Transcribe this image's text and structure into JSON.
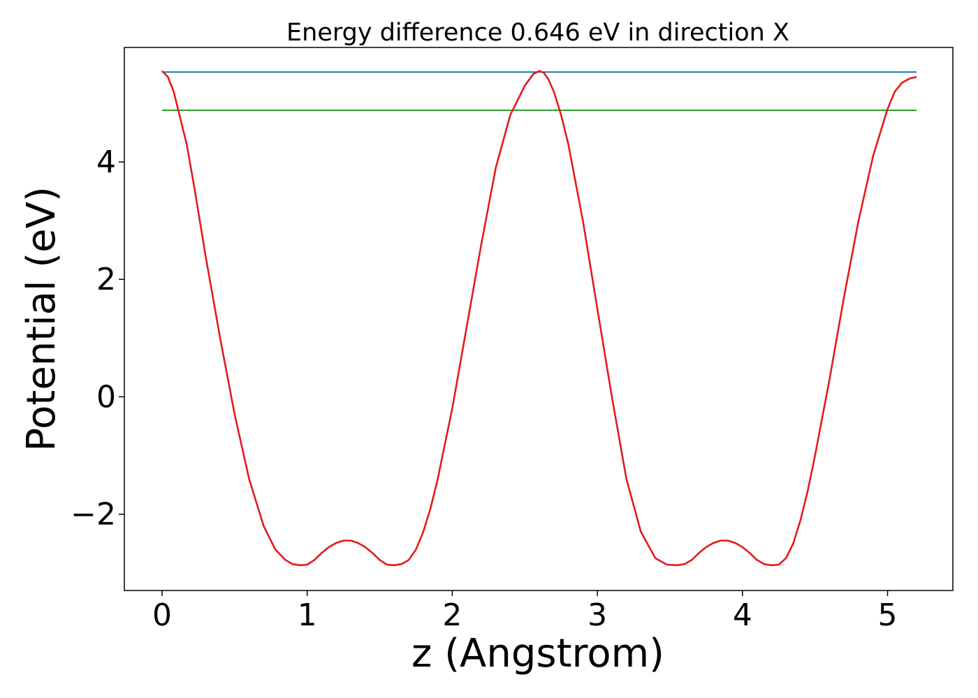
{
  "chart_data": {
    "type": "line",
    "title": "Energy difference 0.646 eV in direction X",
    "xlabel": "z (Angstrom)",
    "ylabel": "Potential (eV)",
    "xlim": [
      -0.26,
      5.45
    ],
    "ylim": [
      -3.3,
      5.95
    ],
    "xticks": [
      0,
      1,
      2,
      3,
      4,
      5
    ],
    "xtick_labels": [
      "0",
      "1",
      "2",
      "3",
      "4",
      "5"
    ],
    "yticks": [
      -2,
      0,
      2,
      4
    ],
    "ytick_labels": [
      "−2",
      "0",
      "2",
      "4"
    ],
    "grid": false,
    "legend": "none",
    "series": [
      {
        "color": "#1f77b4",
        "x": [
          0,
          5.2
        ],
        "y": [
          5.53,
          5.53
        ]
      },
      {
        "color": "#2ca02c",
        "x": [
          0,
          5.2
        ],
        "y": [
          4.88,
          4.88
        ]
      },
      {
        "color": "#e31a1c",
        "x": [
          0,
          0.04,
          0.08,
          0.12,
          0.17,
          0.22,
          0.3,
          0.4,
          0.5,
          0.6,
          0.7,
          0.78,
          0.85,
          0.9,
          0.95,
          1.0,
          1.05,
          1.1,
          1.15,
          1.2,
          1.25,
          1.3,
          1.35,
          1.4,
          1.45,
          1.5,
          1.55,
          1.6,
          1.65,
          1.7,
          1.75,
          1.8,
          1.85,
          1.9,
          2.0,
          2.1,
          2.2,
          2.3,
          2.4,
          2.5,
          2.56,
          2.6,
          2.63,
          2.66,
          2.7,
          2.75,
          2.8,
          2.9,
          3.0,
          3.1,
          3.2,
          3.3,
          3.4,
          3.48,
          3.55,
          3.6,
          3.65,
          3.7,
          3.75,
          3.8,
          3.85,
          3.9,
          3.95,
          4.0,
          4.05,
          4.1,
          4.15,
          4.2,
          4.25,
          4.3,
          4.35,
          4.4,
          4.45,
          4.5,
          4.6,
          4.7,
          4.8,
          4.9,
          5.0,
          5.05,
          5.1,
          5.15,
          5.2
        ],
        "y": [
          5.55,
          5.45,
          5.2,
          4.8,
          4.3,
          3.6,
          2.4,
          1.0,
          -0.3,
          -1.4,
          -2.2,
          -2.6,
          -2.78,
          -2.85,
          -2.87,
          -2.86,
          -2.78,
          -2.66,
          -2.56,
          -2.49,
          -2.45,
          -2.45,
          -2.49,
          -2.56,
          -2.66,
          -2.78,
          -2.86,
          -2.87,
          -2.85,
          -2.78,
          -2.6,
          -2.3,
          -1.9,
          -1.4,
          -0.2,
          1.2,
          2.6,
          3.9,
          4.8,
          5.3,
          5.5,
          5.55,
          5.52,
          5.42,
          5.2,
          4.8,
          4.3,
          3.0,
          1.5,
          0.0,
          -1.4,
          -2.3,
          -2.75,
          -2.86,
          -2.87,
          -2.85,
          -2.78,
          -2.66,
          -2.56,
          -2.49,
          -2.45,
          -2.45,
          -2.49,
          -2.56,
          -2.66,
          -2.78,
          -2.85,
          -2.87,
          -2.86,
          -2.75,
          -2.5,
          -2.1,
          -1.6,
          -1.0,
          0.3,
          1.7,
          3.0,
          4.1,
          4.9,
          5.2,
          5.35,
          5.42,
          5.45
        ]
      }
    ]
  }
}
